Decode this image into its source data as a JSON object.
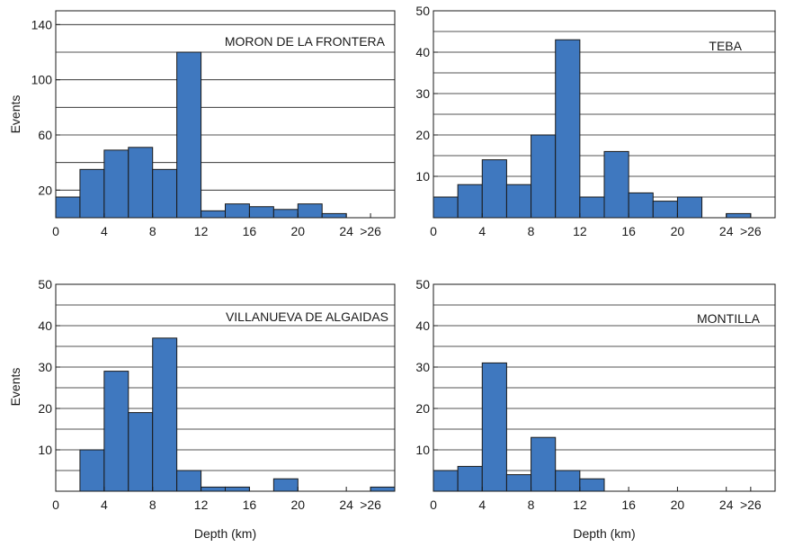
{
  "colors": {
    "bar_fill": "#3f78bf",
    "bar_stroke": "#1a1a1a",
    "grid": "#1a1a1a",
    "axis": "#1a1a1a",
    "text": "#1a1a1a"
  },
  "chart_data": [
    {
      "type": "bar",
      "title": "MORON DE LA FRONTERA",
      "xlabel": "",
      "ylabel": "Events",
      "bin_width": 2,
      "x_ticks": [
        "0",
        "4",
        "8",
        "12",
        "16",
        "20",
        "24",
        ">26"
      ],
      "y_ticks": [
        "20",
        "60",
        "100",
        "140"
      ],
      "ylim": [
        0,
        150
      ],
      "grid": "horizontal",
      "bins": [
        0,
        2,
        4,
        6,
        8,
        10,
        12,
        14,
        16,
        18,
        20,
        22,
        24,
        26
      ],
      "values": [
        15,
        35,
        49,
        51,
        35,
        120,
        5,
        10,
        8,
        6,
        10,
        3,
        0,
        0
      ]
    },
    {
      "type": "bar",
      "title": "TEBA",
      "xlabel": "",
      "ylabel": "",
      "bin_width": 2,
      "x_ticks": [
        "0",
        "4",
        "8",
        "12",
        "16",
        "20",
        "24",
        ">26"
      ],
      "y_ticks": [
        "10",
        "20",
        "30",
        "40",
        "50"
      ],
      "ylim": [
        0,
        50
      ],
      "grid": "horizontal",
      "bins": [
        0,
        2,
        4,
        6,
        8,
        10,
        12,
        14,
        16,
        18,
        20,
        22,
        24,
        26
      ],
      "values": [
        5,
        8,
        14,
        8,
        20,
        43,
        5,
        16,
        6,
        4,
        5,
        0,
        1,
        0
      ]
    },
    {
      "type": "bar",
      "title": "VILLANUEVA DE ALGAIDAS",
      "xlabel": "Depth (km)",
      "ylabel": "Events",
      "bin_width": 2,
      "x_ticks": [
        "0",
        "4",
        "8",
        "12",
        "16",
        "20",
        "24",
        ">26"
      ],
      "y_ticks": [
        "10",
        "20",
        "30",
        "40",
        "50"
      ],
      "ylim": [
        0,
        50
      ],
      "grid": "horizontal",
      "bins": [
        0,
        2,
        4,
        6,
        8,
        10,
        12,
        14,
        16,
        18,
        20,
        22,
        24,
        26
      ],
      "values": [
        0,
        10,
        29,
        19,
        37,
        5,
        1,
        1,
        0,
        3,
        0,
        0,
        0,
        1
      ]
    },
    {
      "type": "bar",
      "title": "MONTILLA",
      "xlabel": "Depth (km)",
      "ylabel": "",
      "bin_width": 2,
      "x_ticks": [
        "0",
        "4",
        "8",
        "12",
        "16",
        "20",
        "24",
        ">26"
      ],
      "y_ticks": [
        "10",
        "20",
        "30",
        "40",
        "50"
      ],
      "ylim": [
        0,
        50
      ],
      "grid": "horizontal",
      "bins": [
        0,
        2,
        4,
        6,
        8,
        10,
        12,
        14,
        16,
        18,
        20,
        22,
        24,
        26
      ],
      "values": [
        5,
        6,
        31,
        4,
        13,
        5,
        3,
        0,
        0,
        0,
        0,
        0,
        0,
        0
      ]
    }
  ]
}
